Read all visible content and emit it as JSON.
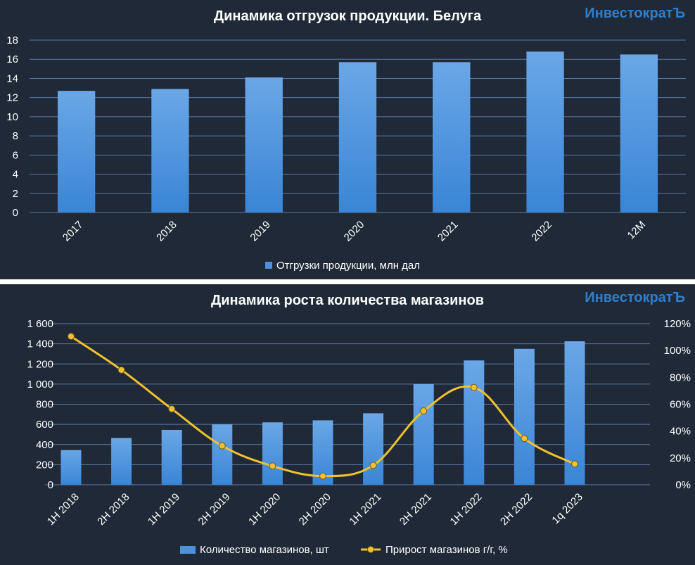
{
  "brand": "ИнвестократЪ",
  "colors": {
    "background": "#1f2937",
    "bar": "#4b92db",
    "line": "#f2c12e",
    "text": "#ffffff",
    "brand": "#2f7fcf"
  },
  "chart_data": [
    {
      "type": "bar",
      "title": "Динамика отгрузок продукции. Белуга",
      "categories": [
        "2017",
        "2018",
        "2019",
        "2020",
        "2021",
        "2022",
        "12M"
      ],
      "series": [
        {
          "name": "Отгрузки продукции, млн дал",
          "values": [
            12.7,
            12.9,
            14.1,
            15.7,
            15.7,
            16.8,
            16.5
          ]
        }
      ],
      "ylim": [
        0,
        18
      ],
      "yticks": [
        "0",
        "2",
        "4",
        "6",
        "8",
        "10",
        "12",
        "14",
        "16",
        "18"
      ],
      "grid": true,
      "legend": "bottom"
    },
    {
      "type": "bar+line",
      "title": "Динамика роста количества магазинов",
      "categories": [
        "1H 2018",
        "2H 2018",
        "1H 2019",
        "2H 2019",
        "1H 2020",
        "2H 2020",
        "1H 2021",
        "2H 2021",
        "1H 2022",
        "2H 2022",
        "1q 2023"
      ],
      "series": [
        {
          "name": "Количество магазинов, шт",
          "type": "bar",
          "axis": "left",
          "values": [
            345,
            465,
            545,
            600,
            620,
            640,
            710,
            1000,
            1235,
            1350,
            1425
          ]
        },
        {
          "name": "Прирост магазинов г/г, %",
          "type": "line",
          "axis": "right",
          "values": [
            110.5,
            85.5,
            56.5,
            29.0,
            14.0,
            6.5,
            14.5,
            55.0,
            72.5,
            34.5,
            15.5
          ]
        }
      ],
      "ylim": [
        0,
        1600
      ],
      "ylim_right": [
        0,
        120
      ],
      "yticks": [
        "0",
        "200",
        "400",
        "600",
        "800",
        "1 000",
        "1 200",
        "1 400",
        "1 600"
      ],
      "yticks_right": [
        "0%",
        "20%",
        "40%",
        "60%",
        "80%",
        "100%",
        "120%"
      ],
      "grid": true,
      "legend": "bottom"
    }
  ]
}
